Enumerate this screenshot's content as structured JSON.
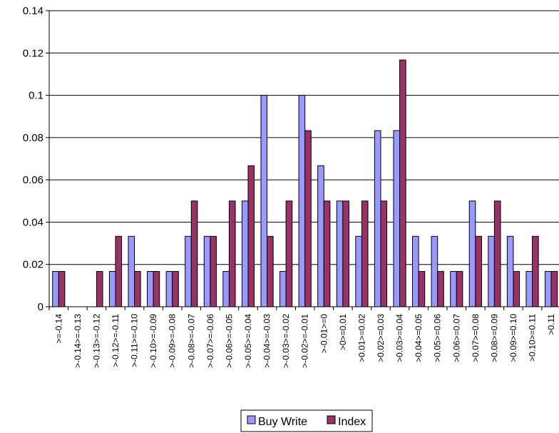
{
  "chart_data": {
    "type": "bar",
    "categories": [
      ">=-0.14",
      ">-0.14>=-0.13",
      ">-0.13>=-0.12",
      ">-0.12>=-0.11",
      ">-0.11>=-0.10",
      ">-0.10>=-0.09",
      ">-0.09>=-0.08",
      ">-0.08>=-0.07",
      ">-0.07>=-0.06",
      ">-0.06>=-0.05",
      ">-0.05>=-0.04",
      ">-0.04>=-0.03",
      ">-0.03>=-0.02",
      ">-0.02>=-0.01",
      ">-0.01>=0",
      ">0>=0.01",
      ">0.01>=0.02",
      ">0.02>=0.03",
      ">0.03>=0.04",
      ">0.04>=0.05",
      ">0.05>=0.06",
      ">0.06>=0.07",
      ">0.07>=0.08",
      ">0.08>=0.09",
      ">0.09>=0.10",
      ">0.10>=0.11",
      ">0.11"
    ],
    "series": [
      {
        "name": "Buy Write",
        "color": "#9999ff",
        "values": [
          0.0167,
          0,
          0,
          0.0167,
          0.0333,
          0.0167,
          0.0167,
          0.0333,
          0.0333,
          0.0167,
          0.05,
          0.1,
          0.0167,
          0.1,
          0.0667,
          0.05,
          0.0333,
          0.0833,
          0.0833,
          0.0333,
          0.0333,
          0.0167,
          0.05,
          0.0333,
          0.0333,
          0.0167,
          0.0167
        ]
      },
      {
        "name": "Index",
        "color": "#993366",
        "values": [
          0.0167,
          0,
          0.0167,
          0.0333,
          0.0167,
          0.0167,
          0.0167,
          0.05,
          0.0333,
          0.05,
          0.0667,
          0.0333,
          0.05,
          0.0833,
          0.05,
          0.05,
          0.05,
          0.05,
          0.1167,
          0.0167,
          0.0167,
          0.0167,
          0.0333,
          0.05,
          0.0167,
          0.0333,
          0.0167
        ]
      }
    ],
    "yticks": [
      "0",
      "0.02",
      "0.04",
      "0.06",
      "0.08",
      "0.1",
      "0.12",
      "0.14"
    ],
    "ylim": [
      0,
      0.14
    ],
    "grid": true,
    "legend": "bottom",
    "title": "",
    "xlabel": "",
    "ylabel": ""
  }
}
